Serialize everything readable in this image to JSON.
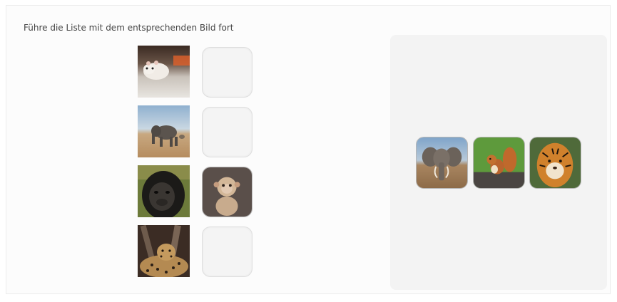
{
  "task": {
    "instruction": "Führe die Liste mit dem entsprechenden Bild fort"
  },
  "rows": [
    {
      "subject": "hamster",
      "slot": "empty"
    },
    {
      "subject": "elephant",
      "slot": "empty"
    },
    {
      "subject": "gorilla",
      "slot": "filled",
      "slot_content": "monkey"
    },
    {
      "subject": "leopard",
      "slot": "empty"
    }
  ],
  "choices": [
    {
      "subject": "elephant"
    },
    {
      "subject": "squirrel"
    },
    {
      "subject": "tiger"
    }
  ],
  "colors": {
    "card_background": "#fcfcfc",
    "bank_background": "#f3f3f3",
    "slot_background": "#f4f4f4",
    "text": "#444444"
  }
}
